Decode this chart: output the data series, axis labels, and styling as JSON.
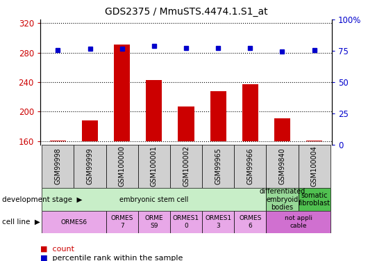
{
  "title": "GDS2375 / MmuSTS.4474.1.S1_at",
  "samples": [
    "GSM99998",
    "GSM99999",
    "GSM100000",
    "GSM100001",
    "GSM100002",
    "GSM99965",
    "GSM99966",
    "GSM99840",
    "GSM100004"
  ],
  "counts": [
    161,
    188,
    291,
    243,
    207,
    228,
    237,
    191,
    161
  ],
  "percentiles": [
    75.5,
    76.5,
    76.5,
    79,
    77,
    77,
    77.5,
    74.5,
    75.5
  ],
  "ylim_left": [
    155,
    325
  ],
  "ylim_right": [
    0,
    100
  ],
  "yticks_left": [
    160,
    200,
    240,
    280,
    320
  ],
  "yticks_right": [
    0,
    25,
    50,
    75,
    100
  ],
  "yticklabels_right": [
    "0",
    "25",
    "50",
    "75",
    "100%"
  ],
  "bar_color": "#cc0000",
  "dot_color": "#0000cc",
  "bar_bottom": 155,
  "dev_stage_groups": [
    {
      "label": "embryonic stem cell",
      "start": 0,
      "end": 7,
      "color": "#c8eec8"
    },
    {
      "label": "differentiated\nembryoid\nbodies",
      "start": 7,
      "end": 8,
      "color": "#98d898"
    },
    {
      "label": "somatic\nfibroblast",
      "start": 8,
      "end": 9,
      "color": "#50c050"
    }
  ],
  "cell_line_groups": [
    {
      "label": "ORMES6",
      "start": 0,
      "end": 2,
      "color": "#e8a8e8"
    },
    {
      "label": "ORMES\n7",
      "start": 2,
      "end": 3,
      "color": "#e8a8e8"
    },
    {
      "label": "ORME\nS9",
      "start": 3,
      "end": 4,
      "color": "#e8a8e8"
    },
    {
      "label": "ORMES1\n0",
      "start": 4,
      "end": 5,
      "color": "#e8a8e8"
    },
    {
      "label": "ORMES1\n3",
      "start": 5,
      "end": 6,
      "color": "#e8a8e8"
    },
    {
      "label": "ORMES\n6",
      "start": 6,
      "end": 7,
      "color": "#e8a8e8"
    },
    {
      "label": "not appli\ncable",
      "start": 7,
      "end": 9,
      "color": "#d070d0"
    }
  ],
  "left_label": "development stage",
  "cell_label": "cell line",
  "legend_count_color": "#cc0000",
  "legend_dot_color": "#0000cc",
  "tick_label_color_left": "#cc0000",
  "tick_label_color_right": "#0000cc",
  "sample_box_color": "#d0d0d0",
  "bar_width": 0.5
}
